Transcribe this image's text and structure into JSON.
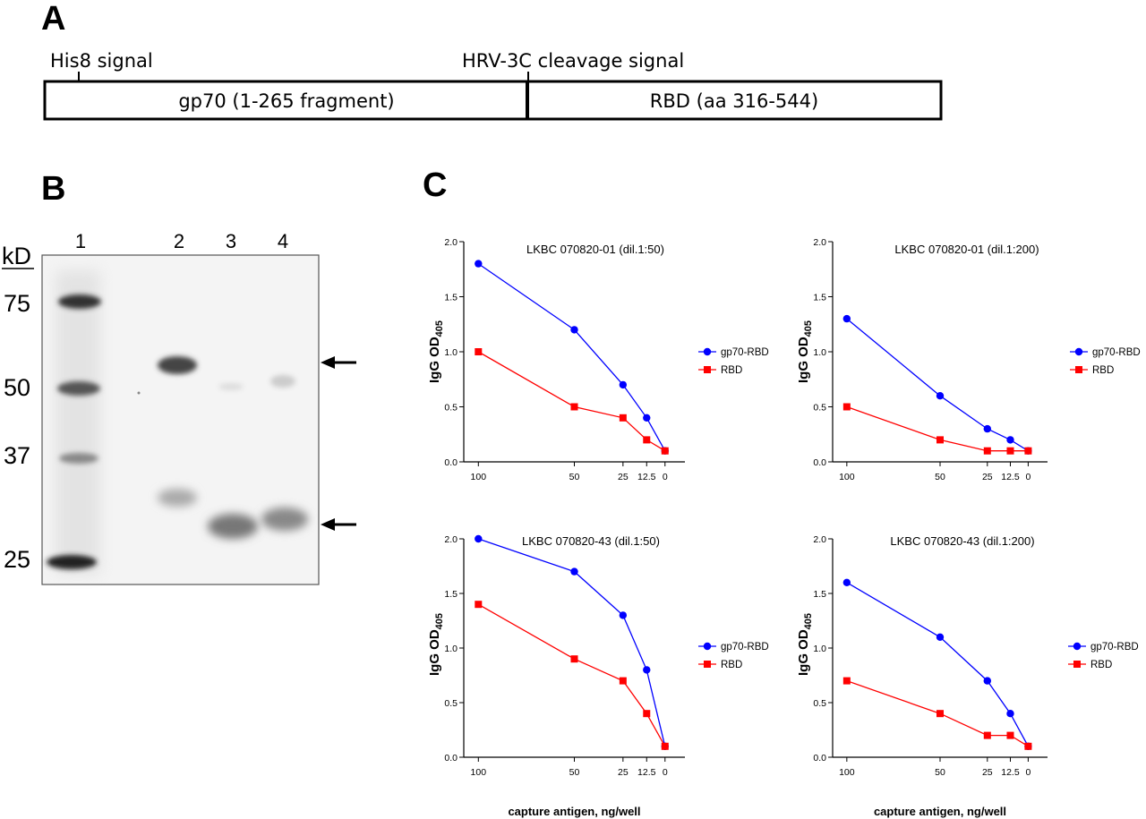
{
  "panels": {
    "a": {
      "letter": "A"
    },
    "b": {
      "letter": "B"
    },
    "c": {
      "letter": "C"
    }
  },
  "construct": {
    "his_tag": "His8 signal",
    "cleavage_signal": "HRV-3C cleavage signal",
    "segments": [
      "gp70 (1-265 fragment)",
      "RBD (aa 316-544)"
    ]
  },
  "gel": {
    "unit_label": "kD",
    "markers": [
      "75",
      "50",
      "37",
      "25"
    ],
    "lanes": [
      "1",
      "2",
      "3",
      "4"
    ],
    "arrow_icons": [
      "arrow-left-icon",
      "arrow-left-icon"
    ]
  },
  "colors": {
    "gp70_rbd": "#0000ff",
    "rbd": "#ff0000"
  },
  "chart_data": [
    {
      "type": "line",
      "title": "LKBC 070820-01 (dil.1:50)",
      "ylabel": "IgG OD",
      "ylabel_sub": "405",
      "xlabel": "",
      "categories": [
        "100",
        "50",
        "25",
        "12.5",
        "0"
      ],
      "ylim": [
        0,
        2.0
      ],
      "yticks": [
        "0.0",
        "0.5",
        "1.0",
        "1.5",
        "2.0"
      ],
      "legend_position": "right",
      "series": [
        {
          "name": "gp70-RBD",
          "marker": "circle",
          "values": [
            1.8,
            1.2,
            0.7,
            0.4,
            0.1
          ]
        },
        {
          "name": "RBD",
          "marker": "square",
          "values": [
            1.0,
            0.5,
            0.4,
            0.2,
            0.1
          ]
        }
      ]
    },
    {
      "type": "line",
      "title": "LKBC 070820-01 (dil.1:200)",
      "ylabel": "IgG OD",
      "ylabel_sub": "405",
      "xlabel": "",
      "categories": [
        "100",
        "50",
        "25",
        "12.5",
        "0"
      ],
      "ylim": [
        0,
        2.0
      ],
      "yticks": [
        "0.0",
        "0.5",
        "1.0",
        "1.5",
        "2.0"
      ],
      "legend_position": "right",
      "series": [
        {
          "name": "gp70-RBD",
          "marker": "circle",
          "values": [
            1.3,
            0.6,
            0.3,
            0.2,
            0.1
          ]
        },
        {
          "name": "RBD",
          "marker": "square",
          "values": [
            0.5,
            0.2,
            0.1,
            0.1,
            0.1
          ]
        }
      ]
    },
    {
      "type": "line",
      "title": "LKBC 070820-43 (dil.1:50)",
      "ylabel": "IgG OD",
      "ylabel_sub": "405",
      "xlabel": "capture antigen, ng/well",
      "categories": [
        "100",
        "50",
        "25",
        "12.5",
        "0"
      ],
      "ylim": [
        0,
        2.0
      ],
      "yticks": [
        "0.0",
        "0.5",
        "1.0",
        "1.5",
        "2.0"
      ],
      "legend_position": "right",
      "series": [
        {
          "name": "gp70-RBD",
          "marker": "circle",
          "values": [
            2.0,
            1.7,
            1.3,
            0.8,
            0.1
          ]
        },
        {
          "name": "RBD",
          "marker": "square",
          "values": [
            1.4,
            0.9,
            0.7,
            0.4,
            0.1
          ]
        }
      ]
    },
    {
      "type": "line",
      "title": "LKBC 070820-43 (dil.1:200)",
      "ylabel": "IgG OD",
      "ylabel_sub": "405",
      "xlabel": "capture antigen, ng/well",
      "categories": [
        "100",
        "50",
        "25",
        "12.5",
        "0"
      ],
      "ylim": [
        0,
        2.0
      ],
      "yticks": [
        "0.0",
        "0.5",
        "1.0",
        "1.5",
        "2.0"
      ],
      "legend_position": "right",
      "series": [
        {
          "name": "gp70-RBD",
          "marker": "circle",
          "values": [
            1.6,
            1.1,
            0.7,
            0.4,
            0.1
          ]
        },
        {
          "name": "RBD",
          "marker": "square",
          "values": [
            0.7,
            0.4,
            0.2,
            0.2,
            0.1
          ]
        }
      ]
    }
  ]
}
